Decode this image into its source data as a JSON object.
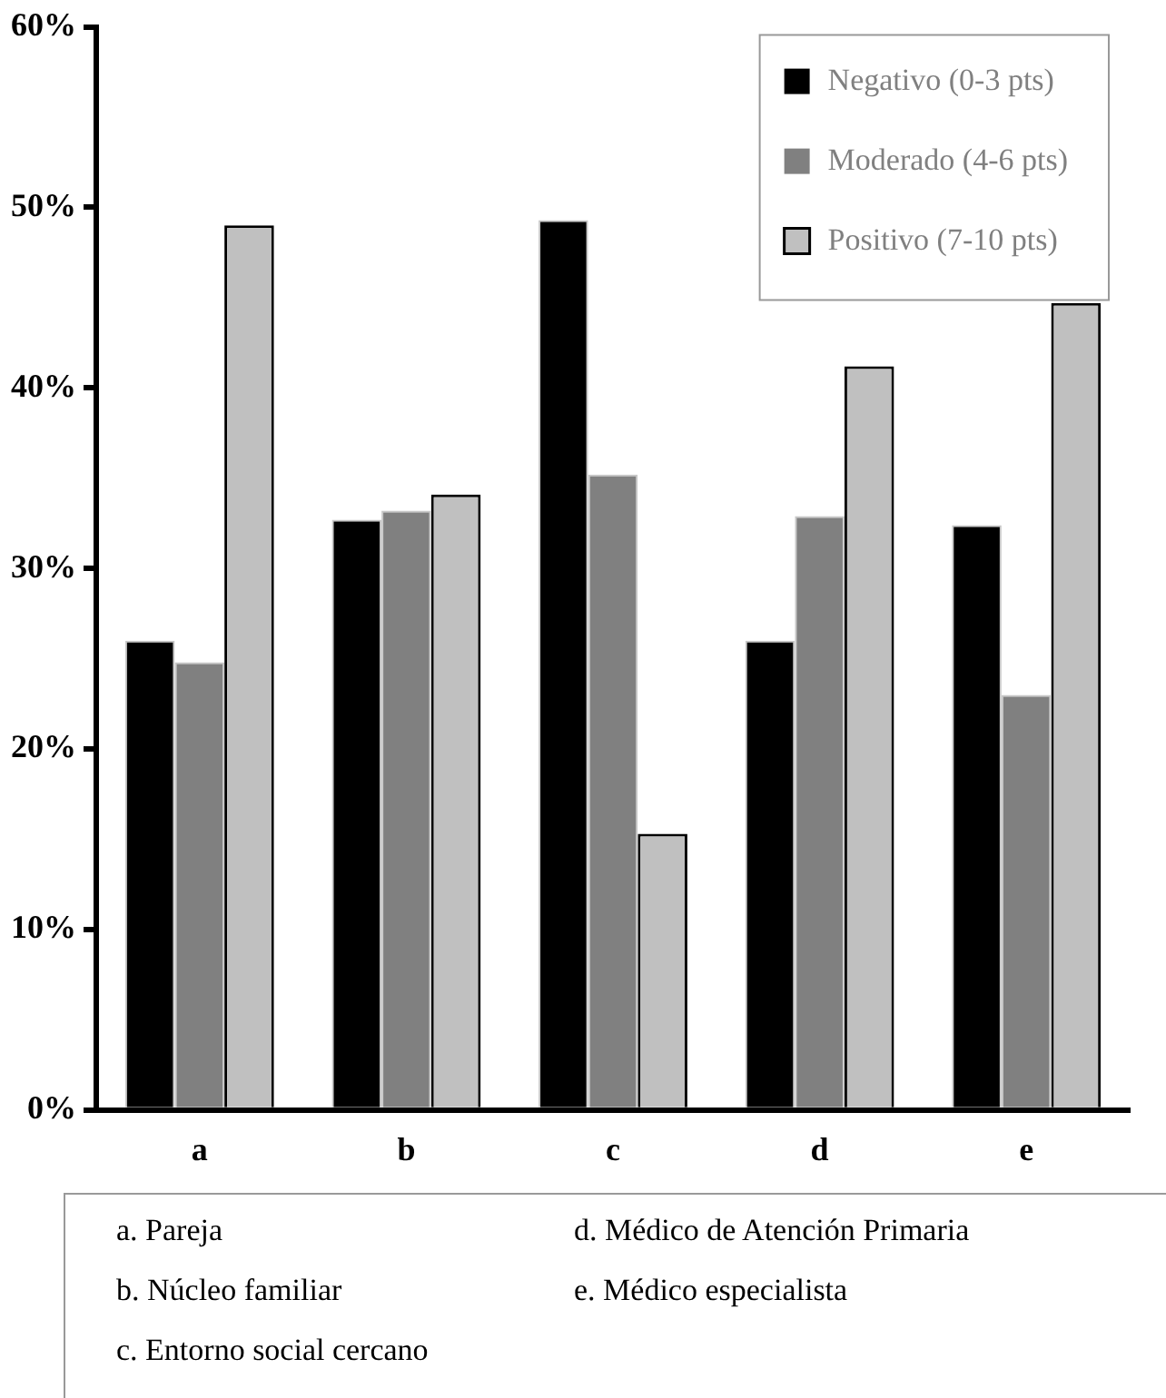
{
  "chart_data": {
    "type": "bar",
    "categories": [
      "a",
      "b",
      "c",
      "d",
      "e"
    ],
    "series": [
      {
        "name": "Negativo (0-3 pts)",
        "color": "#000000",
        "values": [
          26.0,
          32.7,
          49.3,
          26.0,
          32.4
        ]
      },
      {
        "name": "Moderado (4-6 pts)",
        "color": "#808080",
        "values": [
          24.8,
          33.2,
          35.2,
          32.9,
          23.0
        ]
      },
      {
        "name": "Positivo (7-10 pts)",
        "color": "#c0c0c0",
        "values": [
          49.0,
          34.1,
          15.3,
          41.2,
          44.7
        ]
      }
    ],
    "ylim": [
      0,
      60
    ],
    "yticks": [
      {
        "value": 0,
        "label": "0%"
      },
      {
        "value": 10,
        "label": "10%"
      },
      {
        "value": 20,
        "label": "20%"
      },
      {
        "value": 30,
        "label": "30%"
      },
      {
        "value": 40,
        "label": "40%"
      },
      {
        "value": 50,
        "label": "50%"
      },
      {
        "value": 60,
        "label": "60%"
      }
    ],
    "grid": false,
    "legend": "top right",
    "annotations": [
      "a. Pareja",
      "b. Núcleo familiar",
      "c. Entorno social cercano",
      "d. Médico de Atención Primaria",
      "e. Médico especialista"
    ]
  }
}
